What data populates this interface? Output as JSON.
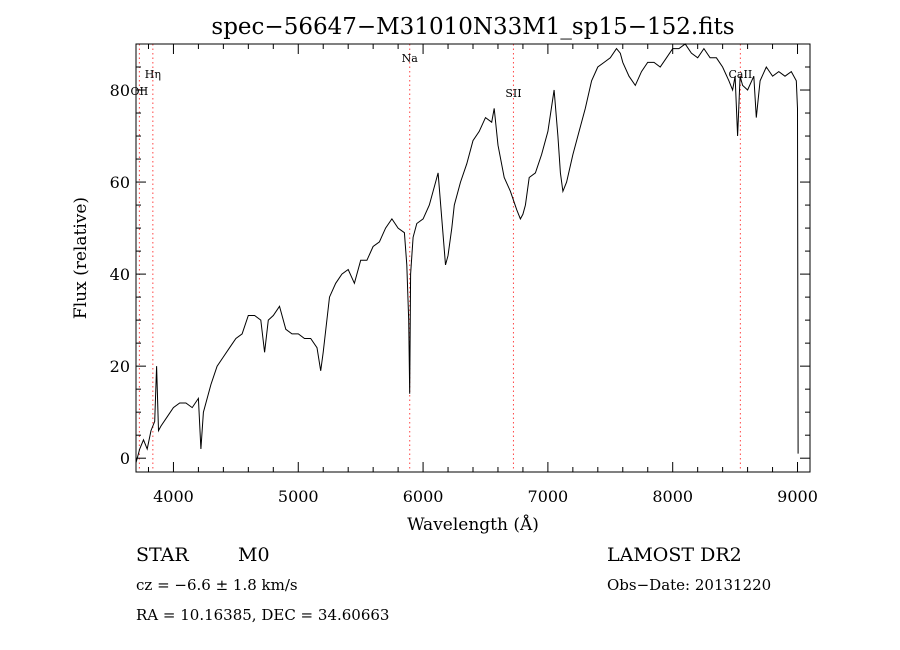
{
  "chart_data": {
    "type": "line",
    "title": "spec−56647−M31010N33M1_sp15−152.fits",
    "xlabel": "Wavelength (Å)",
    "ylabel": "Flux (relative)",
    "xlim": [
      3700,
      9100
    ],
    "ylim": [
      -3,
      90
    ],
    "x_ticks": [
      4000,
      5000,
      6000,
      7000,
      8000,
      9000
    ],
    "x_tick_labels": [
      "4000",
      "5000",
      "6000",
      "7000",
      "8000",
      "9000"
    ],
    "y_ticks": [
      0,
      20,
      40,
      60,
      80
    ],
    "y_tick_labels": [
      "0",
      "20",
      "40",
      "60",
      "80"
    ],
    "line_color": "#000000",
    "marker_color": "#ff4444",
    "series": [
      {
        "x": [
          3700,
          3730,
          3760,
          3790,
          3820,
          3850,
          3865,
          3880,
          3900,
          3950,
          4000,
          4050,
          4100,
          4150,
          4200,
          4220,
          4240,
          4300,
          4350,
          4400,
          4450,
          4500,
          4550,
          4600,
          4650,
          4700,
          4730,
          4760,
          4800,
          4850,
          4900,
          4950,
          5000,
          5050,
          5100,
          5150,
          5180,
          5200,
          5250,
          5300,
          5350,
          5400,
          5450,
          5500,
          5550,
          5600,
          5650,
          5700,
          5750,
          5800,
          5850,
          5870,
          5885,
          5893,
          5900,
          5920,
          5950,
          6000,
          6050,
          6100,
          6120,
          6150,
          6180,
          6200,
          6230,
          6250,
          6300,
          6350,
          6400,
          6450,
          6500,
          6550,
          6570,
          6600,
          6650,
          6700,
          6750,
          6780,
          6800,
          6820,
          6850,
          6900,
          6950,
          7000,
          7050,
          7080,
          7100,
          7120,
          7150,
          7200,
          7250,
          7300,
          7350,
          7400,
          7450,
          7500,
          7550,
          7580,
          7600,
          7650,
          7700,
          7750,
          7800,
          7850,
          7900,
          7950,
          8000,
          8050,
          8100,
          8150,
          8200,
          8250,
          8300,
          8350,
          8400,
          8450,
          8480,
          8500,
          8520,
          8540,
          8560,
          8600,
          8650,
          8670,
          8700,
          8750,
          8800,
          8850,
          8900,
          8950,
          8990,
          9000,
          9005
        ],
        "y": [
          -1,
          2,
          4,
          2,
          6,
          8,
          20,
          6,
          7,
          9,
          11,
          12,
          12,
          11,
          13,
          2,
          10,
          16,
          20,
          22,
          24,
          26,
          27,
          31,
          31,
          30,
          23,
          30,
          31,
          33,
          28,
          27,
          27,
          26,
          26,
          24,
          19,
          23,
          35,
          38,
          40,
          41,
          38,
          43,
          43,
          46,
          47,
          50,
          52,
          50,
          49,
          42,
          30,
          14,
          40,
          48,
          51,
          52,
          55,
          60,
          62,
          52,
          42,
          44,
          50,
          55,
          60,
          64,
          69,
          71,
          74,
          73,
          76,
          68,
          61,
          58,
          54,
          52,
          53,
          55,
          61,
          62,
          66,
          71,
          80,
          70,
          62,
          58,
          60,
          66,
          71,
          76,
          82,
          85,
          86,
          87,
          89,
          88,
          86,
          83,
          81,
          84,
          86,
          86,
          85,
          87,
          89,
          89,
          90,
          88,
          87,
          89,
          87,
          87,
          85,
          82,
          80,
          83,
          70,
          83,
          81,
          80,
          83,
          74,
          82,
          85,
          83,
          84,
          83,
          84,
          82,
          76,
          1
        ]
      }
    ],
    "annotations": [
      {
        "label": "Hη",
        "x": 3835
      },
      {
        "label": "OII",
        "x": 3727
      },
      {
        "label": "Na",
        "x": 5893
      },
      {
        "label": "SII",
        "x": 6724
      },
      {
        "label": "CaII",
        "x": 8542
      }
    ]
  },
  "info": {
    "class_label": "STAR",
    "subclass_label": "M0",
    "survey": "LAMOST DR2",
    "cz": "cz = −6.6 ± 1.8 km/s",
    "obs_date": "Obs−Date: 20131220",
    "coords": "RA =  10.16385, DEC =  34.60663"
  }
}
